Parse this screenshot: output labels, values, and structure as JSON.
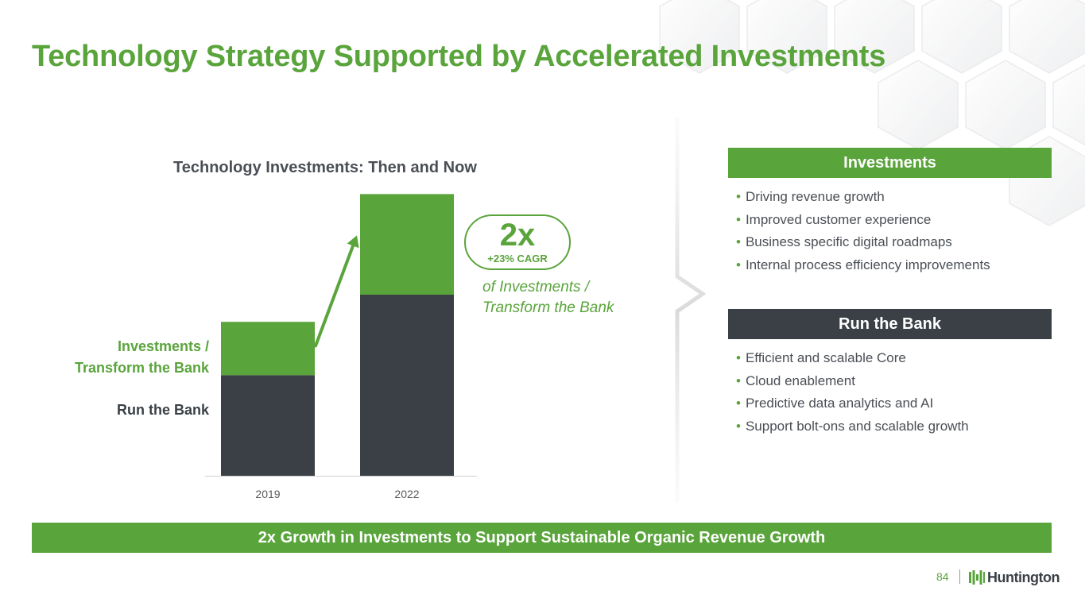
{
  "slide": {
    "title": "Technology Strategy Supported by Accelerated Investments"
  },
  "chart_data": {
    "type": "bar",
    "stacked": true,
    "title": "Technology Investments: Then and Now",
    "categories": [
      "2019",
      "2022"
    ],
    "series": [
      {
        "name": "Run the Bank",
        "values": [
          1.0,
          1.8
        ],
        "color": "#3b4046"
      },
      {
        "name": "Investments / Transform the Bank",
        "values": [
          0.53,
          1.0
        ],
        "color": "#5aa43c"
      }
    ],
    "y_axis_visible": false,
    "ylim": [
      0,
      3.0
    ],
    "grid": false
  },
  "series_labels": {
    "investments_line1": "Investments /",
    "investments_line2": "Transform the Bank",
    "run": "Run the Bank"
  },
  "growth": {
    "multiple": "2x",
    "cagr": "+23% CAGR",
    "caption_line1": "of Investments /",
    "caption_line2": "Transform the Bank"
  },
  "investments_panel": {
    "header": "Investments",
    "items": [
      "Driving revenue growth",
      "Improved customer experience",
      "Business specific digital roadmaps",
      "Internal process efficiency improvements"
    ]
  },
  "run_panel": {
    "header": "Run the Bank",
    "items": [
      "Efficient and scalable Core",
      "Cloud enablement",
      "Predictive data analytics and AI",
      "Support bolt-ons and scalable growth"
    ]
  },
  "banner": {
    "text": "2x Growth in Investments to Support Sustainable Organic Revenue Growth"
  },
  "footer": {
    "page_number": "84",
    "logo_text": "Huntington"
  },
  "colors": {
    "brand_green": "#5aa43c",
    "dark_gray": "#3b4046"
  }
}
